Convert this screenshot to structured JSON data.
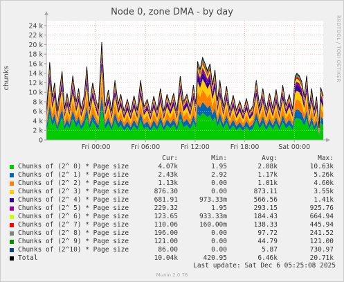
{
  "chart_data": {
    "type": "area",
    "title": "Node 0, zone DMA - by day",
    "ylabel": "chunks",
    "ylim": [
      0,
      25000
    ],
    "y_ticks": [
      {
        "value": 0,
        "label": "0"
      },
      {
        "value": 2000,
        "label": "2 k"
      },
      {
        "value": 4000,
        "label": "4 k"
      },
      {
        "value": 6000,
        "label": "6 k"
      },
      {
        "value": 8000,
        "label": "8 k"
      },
      {
        "value": 10000,
        "label": "10 k"
      },
      {
        "value": 12000,
        "label": "12 k"
      },
      {
        "value": 14000,
        "label": "14 k"
      },
      {
        "value": 16000,
        "label": "16 k"
      },
      {
        "value": 18000,
        "label": "18 k"
      },
      {
        "value": 20000,
        "label": "20 k"
      },
      {
        "value": 22000,
        "label": "22 k"
      },
      {
        "value": 24000,
        "label": "24 k"
      }
    ],
    "x_ticks": [
      {
        "hour": 6,
        "label": "Fri 00:00"
      },
      {
        "hour": 12,
        "label": "Fri 06:00"
      },
      {
        "hour": 18,
        "label": "Fri 12:00"
      },
      {
        "hour": 24,
        "label": "Fri 18:00"
      },
      {
        "hour": 30,
        "label": "Sat 00:00"
      }
    ],
    "x_range_hours": [
      0,
      33.5
    ],
    "grid": true,
    "stacked": true,
    "total_trace": [
      [
        0.0,
        5500
      ],
      [
        0.4,
        16300
      ],
      [
        0.7,
        9000
      ],
      [
        1.0,
        12000
      ],
      [
        1.3,
        6000
      ],
      [
        1.6,
        10500
      ],
      [
        1.9,
        14400
      ],
      [
        2.2,
        6500
      ],
      [
        2.5,
        9800
      ],
      [
        2.8,
        7000
      ],
      [
        3.2,
        13500
      ],
      [
        3.6,
        8000
      ],
      [
        3.9,
        10800
      ],
      [
        4.2,
        6500
      ],
      [
        4.6,
        9500
      ],
      [
        4.9,
        15400
      ],
      [
        5.2,
        7000
      ],
      [
        5.6,
        12000
      ],
      [
        6.0,
        8500
      ],
      [
        6.3,
        6500
      ],
      [
        6.7,
        20500
      ],
      [
        7.1,
        7000
      ],
      [
        7.5,
        10500
      ],
      [
        7.9,
        6000
      ],
      [
        8.3,
        12500
      ],
      [
        8.7,
        7500
      ],
      [
        9.0,
        9600
      ],
      [
        9.4,
        6000
      ],
      [
        9.8,
        8500
      ],
      [
        10.2,
        5800
      ],
      [
        10.6,
        9300
      ],
      [
        11.0,
        6200
      ],
      [
        11.4,
        12500
      ],
      [
        11.8,
        7000
      ],
      [
        12.2,
        8500
      ],
      [
        12.6,
        5700
      ],
      [
        13.0,
        9200
      ],
      [
        13.4,
        6200
      ],
      [
        13.8,
        10800
      ],
      [
        14.2,
        6000
      ],
      [
        14.6,
        9600
      ],
      [
        15.0,
        7300
      ],
      [
        15.4,
        9800
      ],
      [
        15.8,
        6000
      ],
      [
        16.2,
        13400
      ],
      [
        16.6,
        8000
      ],
      [
        17.0,
        9600
      ],
      [
        17.4,
        6800
      ],
      [
        17.8,
        11500
      ],
      [
        18.1,
        7500
      ],
      [
        18.3,
        16500
      ],
      [
        18.6,
        14800
      ],
      [
        18.9,
        17300
      ],
      [
        19.2,
        16000
      ],
      [
        19.5,
        14500
      ],
      [
        19.8,
        16000
      ],
      [
        20.1,
        11500
      ],
      [
        20.4,
        14700
      ],
      [
        20.7,
        8200
      ],
      [
        21.0,
        12500
      ],
      [
        21.4,
        7000
      ],
      [
        21.8,
        11300
      ],
      [
        22.2,
        6200
      ],
      [
        22.6,
        9400
      ],
      [
        23.0,
        6200
      ],
      [
        23.4,
        8200
      ],
      [
        23.8,
        5800
      ],
      [
        24.2,
        8700
      ],
      [
        24.6,
        5900
      ],
      [
        25.0,
        7200
      ],
      [
        25.4,
        12500
      ],
      [
        25.8,
        7000
      ],
      [
        26.2,
        10800
      ],
      [
        26.6,
        6200
      ],
      [
        27.0,
        9800
      ],
      [
        27.4,
        6600
      ],
      [
        27.8,
        10600
      ],
      [
        28.2,
        6200
      ],
      [
        28.6,
        11500
      ],
      [
        29.0,
        7200
      ],
      [
        29.4,
        9500
      ],
      [
        29.8,
        6500
      ],
      [
        30.1,
        13300
      ],
      [
        30.3,
        14000
      ],
      [
        30.6,
        13500
      ],
      [
        30.9,
        12200
      ],
      [
        31.2,
        9000
      ],
      [
        31.5,
        13500
      ],
      [
        31.8,
        6500
      ],
      [
        32.1,
        10800
      ],
      [
        32.4,
        6200
      ],
      [
        32.7,
        9100
      ],
      [
        33.0,
        2500
      ],
      [
        33.2,
        11000
      ],
      [
        33.5,
        9200
      ]
    ],
    "series": [
      {
        "name": "Chunks of (2^ 0) * Page size",
        "color": "#00cc00",
        "cur": "4.07k",
        "min": "1.95",
        "avg": "2.08k",
        "max": "10.63k"
      },
      {
        "name": "Chunks of (2^ 1) * Page size",
        "color": "#0066b3",
        "cur": "2.43k",
        "min": "2.92",
        "avg": "1.17k",
        "max": "5.26k"
      },
      {
        "name": "Chunks of (2^ 2) * Page size",
        "color": "#ff8000",
        "cur": "1.13k",
        "min": "0.00",
        "avg": "1.01k",
        "max": "4.60k"
      },
      {
        "name": "Chunks of (2^ 3) * Page size",
        "color": "#ffcc00",
        "cur": "876.30",
        "min": "0.00",
        "avg": "873.11",
        "max": "3.55k"
      },
      {
        "name": "Chunks of (2^ 4) * Page size",
        "color": "#330099",
        "cur": "681.91",
        "min": "973.33m",
        "avg": "566.56",
        "max": "1.41k"
      },
      {
        "name": "Chunks of (2^ 5) * Page size",
        "color": "#990099",
        "cur": "229.32",
        "min": "1.95",
        "avg": "293.15",
        "max": "925.76"
      },
      {
        "name": "Chunks of (2^ 6) * Page size",
        "color": "#ccff00",
        "cur": "123.65",
        "min": "933.33m",
        "avg": "184.43",
        "max": "664.94"
      },
      {
        "name": "Chunks of (2^ 7) * Page size",
        "color": "#ff0000",
        "cur": "110.06",
        "min": "160.00m",
        "avg": "138.33",
        "max": "445.94"
      },
      {
        "name": "Chunks of (2^ 8) * Page size",
        "color": "#808080",
        "cur": "196.00",
        "min": "0.00",
        "avg": "97.72",
        "max": "241.52"
      },
      {
        "name": "Chunks of (2^ 9) * Page size",
        "color": "#008f00",
        "cur": "121.00",
        "min": "0.00",
        "avg": "44.79",
        "max": "121.00"
      },
      {
        "name": "Chunks of (2^10) * Page size",
        "color": "#00487d",
        "cur": "86.00",
        "min": "0.00",
        "avg": "5.87",
        "max": "730.97"
      },
      {
        "name": "Total",
        "color": "#000000",
        "cur": "10.04k",
        "min": "420.95",
        "avg": "6.46k",
        "max": "20.71k"
      }
    ]
  },
  "legend_headers": {
    "cur": "Cur:",
    "min": "Min:",
    "avg": "Avg:",
    "max": "Max:"
  },
  "footer": "Last update: Sat Dec  6 05:25:08 2025",
  "side_tag": "RRDTOOL / TOBI OETIKER",
  "munin_version": "Munin 2.0.76"
}
